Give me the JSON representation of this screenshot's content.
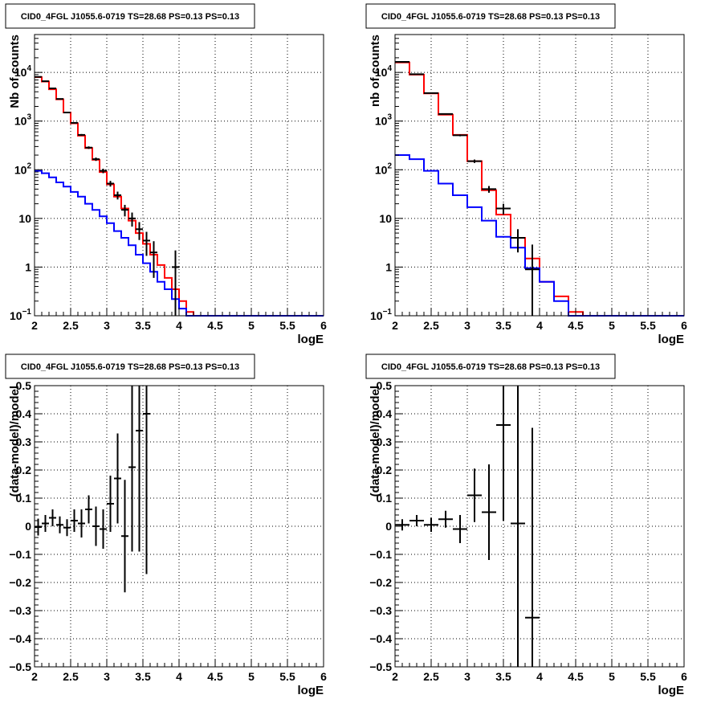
{
  "chart_data": [
    {
      "type": "line",
      "title": "CID0_4FGL J1055.6-0719 TS=28.68 PS=0.13 PS=0.13",
      "xlabel": "logE",
      "ylabel": "Nb of counts",
      "xlim": [
        2,
        6
      ],
      "ylim": [
        0.1,
        60000
      ],
      "log_y": true,
      "grid": true,
      "x_ticks": [
        "2",
        "2.5",
        "3",
        "3.5",
        "4",
        "4.5",
        "5",
        "5.5",
        "6"
      ],
      "y_ticks": [
        "10^-1",
        "1",
        "10",
        "10^2",
        "10^3",
        "10^4"
      ],
      "bin_edges": [
        2.0,
        2.1,
        2.2,
        2.3,
        2.4,
        2.5,
        2.6,
        2.7,
        2.8,
        2.9,
        3.0,
        3.1,
        3.2,
        3.3,
        3.4,
        3.5,
        3.6,
        3.7,
        3.8,
        3.9,
        4.0,
        4.1,
        4.2,
        4.3,
        4.4,
        4.5,
        4.6,
        4.7,
        4.8,
        4.9,
        5.0,
        5.1,
        5.2,
        5.3,
        5.4,
        5.5,
        5.6,
        5.7,
        5.8,
        5.9,
        6.0
      ],
      "series": [
        {
          "color": "#ff0000",
          "kind": "step",
          "values": [
            8000,
            6500,
            4500,
            2800,
            1500,
            900,
            500,
            280,
            160,
            90,
            50,
            28,
            16,
            9,
            5,
            3,
            1.8,
            1.1,
            0.6,
            0.35,
            0.2,
            0.12,
            0.1,
            0.1,
            0.1,
            0.1,
            0.1,
            0.1,
            0.1,
            0.1,
            0.1,
            0.1,
            0.1,
            0.1,
            0.1,
            0.1,
            0.1,
            0.1,
            0.1,
            0.1
          ]
        },
        {
          "color": "#0000ff",
          "kind": "step",
          "values": [
            95,
            85,
            70,
            55,
            45,
            35,
            28,
            20,
            15,
            11,
            8,
            5.5,
            4,
            2.8,
            1.8,
            1.2,
            0.8,
            0.5,
            0.35,
            0.22,
            0.14,
            0.1,
            0.1,
            0.1,
            0.1,
            0.1,
            0.1,
            0.1,
            0.1,
            0.1,
            0.1,
            0.1,
            0.1,
            0.1,
            0.1,
            0.1,
            0.1,
            0.1,
            0.1,
            0.1
          ]
        },
        {
          "color": "#000000",
          "kind": "points",
          "x": [
            2.05,
            2.15,
            2.25,
            2.35,
            2.45,
            2.55,
            2.65,
            2.75,
            2.85,
            2.95,
            3.05,
            3.15,
            3.25,
            3.35,
            3.45,
            3.55,
            3.65,
            3.95
          ],
          "y": [
            8100,
            6600,
            4700,
            2850,
            1500,
            920,
            520,
            285,
            165,
            95,
            52,
            30,
            15,
            10,
            6,
            3.5,
            2,
            1
          ],
          "err_lo": [
            90,
            80,
            70,
            55,
            40,
            30,
            22,
            17,
            13,
            10,
            7,
            5.5,
            4,
            3.2,
            2.4,
            1.8,
            1.4,
            0.99
          ],
          "err_hi": [
            90,
            80,
            70,
            55,
            40,
            30,
            22,
            17,
            13,
            10,
            7,
            5.5,
            4,
            3.2,
            2.4,
            1.8,
            1.4,
            1.2
          ]
        }
      ]
    },
    {
      "type": "line",
      "title": "CID0_4FGL J1055.6-0719 TS=28.68 PS=0.13 PS=0.13",
      "xlabel": "logE",
      "ylabel": "nb of counts",
      "xlim": [
        2,
        6
      ],
      "ylim": [
        0.1,
        60000
      ],
      "log_y": true,
      "grid": true,
      "x_ticks": [
        "2",
        "2.5",
        "3",
        "3.5",
        "4",
        "4.5",
        "5",
        "5.5",
        "6"
      ],
      "y_ticks": [
        "10^-1",
        "1",
        "10",
        "10^2",
        "10^3",
        "10^4"
      ],
      "bin_edges": [
        2.0,
        2.2,
        2.4,
        2.6,
        2.8,
        3.0,
        3.2,
        3.4,
        3.6,
        3.8,
        4.0,
        4.2,
        4.4,
        4.6,
        4.8,
        5.0,
        5.2,
        5.4,
        5.6,
        5.8,
        6.0
      ],
      "series": [
        {
          "color": "#ff0000",
          "kind": "step",
          "values": [
            16000,
            9000,
            3700,
            1350,
            520,
            150,
            38,
            12,
            4,
            1.5,
            0.5,
            0.25,
            0.12,
            0.1,
            0.1,
            0.1,
            0.1,
            0.1,
            0.1,
            0.1
          ]
        },
        {
          "color": "#0000ff",
          "kind": "step",
          "values": [
            200,
            165,
            95,
            52,
            30,
            17,
            9,
            4.2,
            2.5,
            0.95,
            0.5,
            0.2,
            0.1,
            0.1,
            0.1,
            0.1,
            0.1,
            0.1,
            0.1,
            0.1
          ]
        },
        {
          "color": "#000000",
          "kind": "points",
          "x": [
            2.1,
            2.3,
            2.5,
            2.7,
            2.9,
            3.1,
            3.3,
            3.5,
            3.7,
            3.9
          ],
          "y": [
            16500,
            9200,
            3750,
            1400,
            510,
            150,
            40,
            16,
            4,
            0.9
          ],
          "err_lo": [
            130,
            96,
            61,
            37,
            23,
            12,
            6.3,
            4,
            2,
            0.89
          ],
          "err_hi": [
            130,
            96,
            61,
            37,
            23,
            12,
            6.3,
            4,
            2,
            2
          ]
        }
      ]
    },
    {
      "type": "scatter",
      "title": "CID0_4FGL J1055.6-0719 TS=28.68 PS=0.13 PS=0.13",
      "xlabel": "logE",
      "ylabel": "(data-model)/model",
      "xlim": [
        2,
        6
      ],
      "ylim": [
        -0.5,
        0.5
      ],
      "log_y": false,
      "grid": true,
      "x_ticks": [
        "2",
        "2.5",
        "3",
        "3.5",
        "4",
        "4.5",
        "5",
        "5.5",
        "6"
      ],
      "y_ticks": [
        "-0.5",
        "-0.4",
        "-0.3",
        "-0.2",
        "-0.1",
        "0",
        "0.1",
        "0.2",
        "0.3",
        "0.4",
        "0.5"
      ],
      "series": [
        {
          "color": "#000000",
          "kind": "points",
          "x": [
            2.05,
            2.15,
            2.25,
            2.35,
            2.45,
            2.55,
            2.65,
            2.75,
            2.85,
            2.95,
            3.05,
            3.15,
            3.25,
            3.35,
            3.45,
            3.55
          ],
          "xerr": 0.05,
          "y": [
            -0.003,
            0.01,
            0.03,
            0.005,
            -0.005,
            0.02,
            0.01,
            0.06,
            0.0,
            -0.01,
            0.08,
            0.17,
            -0.035,
            0.21,
            0.34,
            0.4
          ],
          "err_lo": [
            0.03,
            0.03,
            0.03,
            0.03,
            0.03,
            0.04,
            0.05,
            0.05,
            0.07,
            0.07,
            0.1,
            0.16,
            0.2,
            0.3,
            0.43,
            0.57
          ],
          "err_hi": [
            0.03,
            0.03,
            0.03,
            0.03,
            0.03,
            0.04,
            0.05,
            0.05,
            0.07,
            0.07,
            0.1,
            0.16,
            0.2,
            0.3,
            0.43,
            0.57
          ]
        }
      ]
    },
    {
      "type": "scatter",
      "title": "CID0_4FGL J1055.6-0719 TS=28.68 PS=0.13 PS=0.13",
      "xlabel": "logE",
      "ylabel": "(data-model)/model",
      "xlim": [
        2,
        6
      ],
      "ylim": [
        -0.5,
        0.5
      ],
      "log_y": false,
      "grid": true,
      "x_ticks": [
        "2",
        "2.5",
        "3",
        "3.5",
        "4",
        "4.5",
        "5",
        "5.5",
        "6"
      ],
      "y_ticks": [
        "-0.5",
        "-0.4",
        "-0.3",
        "-0.2",
        "-0.1",
        "0",
        "0.1",
        "0.2",
        "0.3",
        "0.4",
        "0.5"
      ],
      "series": [
        {
          "color": "#000000",
          "kind": "points",
          "x": [
            2.1,
            2.3,
            2.5,
            2.7,
            2.9,
            3.1,
            3.3,
            3.5,
            3.7,
            3.9
          ],
          "xerr": 0.1,
          "y": [
            0.005,
            0.02,
            0.005,
            0.025,
            -0.01,
            0.11,
            0.05,
            0.36,
            0.01,
            -0.325
          ],
          "err_lo": [
            0.02,
            0.02,
            0.025,
            0.03,
            0.05,
            0.095,
            0.17,
            0.34,
            0.8,
            0.7
          ],
          "err_hi": [
            0.02,
            0.02,
            0.025,
            0.03,
            0.05,
            0.095,
            0.17,
            0.34,
            0.8,
            0.675
          ]
        }
      ]
    }
  ]
}
